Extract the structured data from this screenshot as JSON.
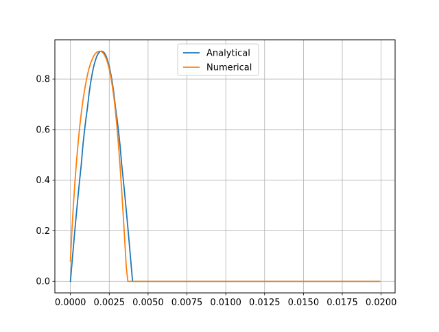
{
  "chart_data": {
    "type": "line",
    "title": "",
    "xlabel": "",
    "ylabel": "",
    "xlim": [
      -0.001,
      0.0209
    ],
    "ylim": [
      -0.0455,
      0.955
    ],
    "xticks": [
      0.0,
      0.0025,
      0.005,
      0.0075,
      0.01,
      0.0125,
      0.015,
      0.0175,
      0.02
    ],
    "xtick_labels": [
      "0.0000",
      "0.0025",
      "0.0050",
      "0.0075",
      "0.0100",
      "0.0125",
      "0.0150",
      "0.0175",
      "0.0200"
    ],
    "yticks": [
      0.0,
      0.2,
      0.4,
      0.6,
      0.8
    ],
    "ytick_labels": [
      "0.0",
      "0.2",
      "0.4",
      "0.6",
      "0.8"
    ],
    "grid": true,
    "legend_position": "upper center",
    "series": [
      {
        "name": "Analytical",
        "color": "#1f77b4",
        "x": [
          0.0,
          0.0001,
          0.0002,
          0.0003,
          0.0004,
          0.0005,
          0.0006,
          0.0007,
          0.0008,
          0.0009,
          0.001,
          0.0011,
          0.0012,
          0.0013,
          0.0014,
          0.0015,
          0.0016,
          0.0017,
          0.0018,
          0.0019,
          0.002,
          0.0021,
          0.0022,
          0.0023,
          0.0024,
          0.0025,
          0.0026,
          0.0027,
          0.0028,
          0.0029,
          0.003,
          0.0031,
          0.0032,
          0.0033,
          0.0034,
          0.0035,
          0.0036,
          0.0037,
          0.0038,
          0.0039,
          0.004,
          0.0199
        ],
        "y": [
          0.0,
          0.071,
          0.142,
          0.211,
          0.278,
          0.342,
          0.404,
          0.462,
          0.535,
          0.592,
          0.643,
          0.688,
          0.742,
          0.785,
          0.82,
          0.85,
          0.872,
          0.89,
          0.902,
          0.908,
          0.91,
          0.908,
          0.902,
          0.89,
          0.872,
          0.85,
          0.82,
          0.785,
          0.742,
          0.688,
          0.643,
          0.592,
          0.535,
          0.462,
          0.404,
          0.342,
          0.278,
          0.211,
          0.142,
          0.071,
          0.0,
          0.0
        ]
      },
      {
        "name": "Numerical",
        "color": "#ff7f0e",
        "x": [
          0.0,
          0.0001,
          0.0002,
          0.0003,
          0.0004,
          0.0005,
          0.0006,
          0.0007,
          0.0008,
          0.0009,
          0.001,
          0.0011,
          0.0012,
          0.0013,
          0.0014,
          0.0015,
          0.0016,
          0.0017,
          0.0018,
          0.0019,
          0.002,
          0.0021,
          0.0022,
          0.0023,
          0.0024,
          0.0025,
          0.0026,
          0.0027,
          0.0028,
          0.0029,
          0.003,
          0.0031,
          0.0032,
          0.0033,
          0.0034,
          0.0035,
          0.0036,
          0.0037,
          0.0038,
          0.0039,
          0.004,
          0.0199
        ],
        "y": [
          0.08,
          0.205,
          0.31,
          0.4,
          0.48,
          0.55,
          0.612,
          0.665,
          0.712,
          0.752,
          0.787,
          0.817,
          0.842,
          0.862,
          0.878,
          0.891,
          0.9,
          0.906,
          0.909,
          0.91,
          0.908,
          0.903,
          0.894,
          0.881,
          0.863,
          0.839,
          0.809,
          0.772,
          0.727,
          0.673,
          0.609,
          0.535,
          0.452,
          0.36,
          0.262,
          0.158,
          0.053,
          0.0,
          0.0,
          0.0,
          0.0,
          0.0
        ]
      }
    ]
  }
}
